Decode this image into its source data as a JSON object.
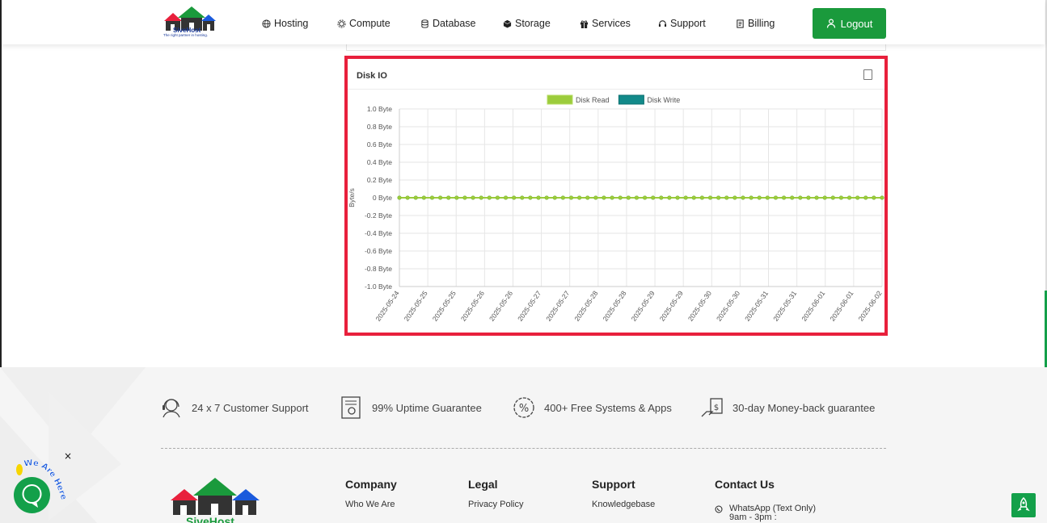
{
  "brand": {
    "name": "SiveHost",
    "tagline": "The right partner in hosting.",
    "colors": {
      "green": "#1a9a3c",
      "red": "#e8203c",
      "blue": "#1a3a9a"
    }
  },
  "nav": {
    "items": [
      {
        "label": "Hosting",
        "icon": "globe-icon"
      },
      {
        "label": "Compute",
        "icon": "gear-icon"
      },
      {
        "label": "Database",
        "icon": "database-icon"
      },
      {
        "label": "Storage",
        "icon": "box-icon"
      },
      {
        "label": "Services",
        "icon": "gift-icon"
      },
      {
        "label": "Support",
        "icon": "headset-icon"
      },
      {
        "label": "Billing",
        "icon": "invoice-icon"
      }
    ],
    "logout_label": "Logout"
  },
  "disk_io": {
    "title": "Disk IO",
    "legend": [
      {
        "name": "Disk Read",
        "color": "#9ccc3c"
      },
      {
        "name": "Disk Write",
        "color": "#128a8a"
      }
    ],
    "y_axis_label": "Byte/s",
    "y_ticks": [
      "1.0 Byte",
      "0.8 Byte",
      "0.6 Byte",
      "0.4 Byte",
      "0.2 Byte",
      "0 Byte",
      "-0.2 Byte",
      "-0.4 Byte",
      "-0.6 Byte",
      "-0.8 Byte",
      "-1.0 Byte"
    ],
    "x_ticks": [
      "2025-05-24",
      "2025-05-25",
      "2025-05-25",
      "2025-05-26",
      "2025-05-26",
      "2025-05-27",
      "2025-05-27",
      "2025-05-28",
      "2025-05-28",
      "2025-05-29",
      "2025-05-29",
      "2025-05-30",
      "2025-05-30",
      "2025-05-31",
      "2025-05-31",
      "2025-06-01",
      "2025-06-01",
      "2025-06-02"
    ]
  },
  "chart_data": {
    "type": "line",
    "title": "Disk IO",
    "ylabel": "Byte/s",
    "xlabel": "",
    "ylim": [
      -1.0,
      1.0
    ],
    "grid": true,
    "legend_position": "top",
    "x_range": [
      "2025-05-24",
      "2025-06-02"
    ],
    "series": [
      {
        "name": "Disk Read",
        "color": "#9ccc3c",
        "values": [
          0,
          0,
          0,
          0,
          0,
          0,
          0,
          0,
          0,
          0,
          0,
          0,
          0,
          0,
          0,
          0,
          0,
          0,
          0,
          0,
          0,
          0,
          0,
          0,
          0,
          0,
          0,
          0,
          0,
          0,
          0,
          0,
          0,
          0,
          0,
          0,
          0,
          0,
          0,
          0,
          0,
          0,
          0,
          0,
          0,
          0,
          0,
          0,
          0,
          0,
          0,
          0,
          0,
          0,
          0,
          0,
          0,
          0,
          0,
          0
        ]
      },
      {
        "name": "Disk Write",
        "color": "#128a8a",
        "values": [
          0,
          0,
          0,
          0,
          0,
          0,
          0,
          0,
          0,
          0,
          0,
          0,
          0,
          0,
          0,
          0,
          0,
          0,
          0,
          0,
          0,
          0,
          0,
          0,
          0,
          0,
          0,
          0,
          0,
          0,
          0,
          0,
          0,
          0,
          0,
          0,
          0,
          0,
          0,
          0,
          0,
          0,
          0,
          0,
          0,
          0,
          0,
          0,
          0,
          0,
          0,
          0,
          0,
          0,
          0,
          0,
          0,
          0,
          0,
          0
        ]
      }
    ]
  },
  "features": [
    {
      "label": "24 x 7 Customer Support",
      "icon": "support-agent-icon"
    },
    {
      "label": "99% Uptime Guarantee",
      "icon": "certificate-icon"
    },
    {
      "label": "400+ Free Systems & Apps",
      "icon": "percent-badge-icon"
    },
    {
      "label": "30-day Money-back guarantee",
      "icon": "money-back-icon"
    }
  ],
  "footer": {
    "columns": [
      {
        "title": "Company",
        "first_link": "Who We Are"
      },
      {
        "title": "Legal",
        "first_link": "Privacy Policy"
      },
      {
        "title": "Support",
        "first_link": "Knowledgebase"
      },
      {
        "title": "Contact Us",
        "first_link": "WhatsApp (Text Only)"
      }
    ],
    "whatsapp_hours": "9am - 3pm :",
    "logo_text": "SiveHost"
  },
  "chat": {
    "label": "We Are Here",
    "close": "×"
  }
}
